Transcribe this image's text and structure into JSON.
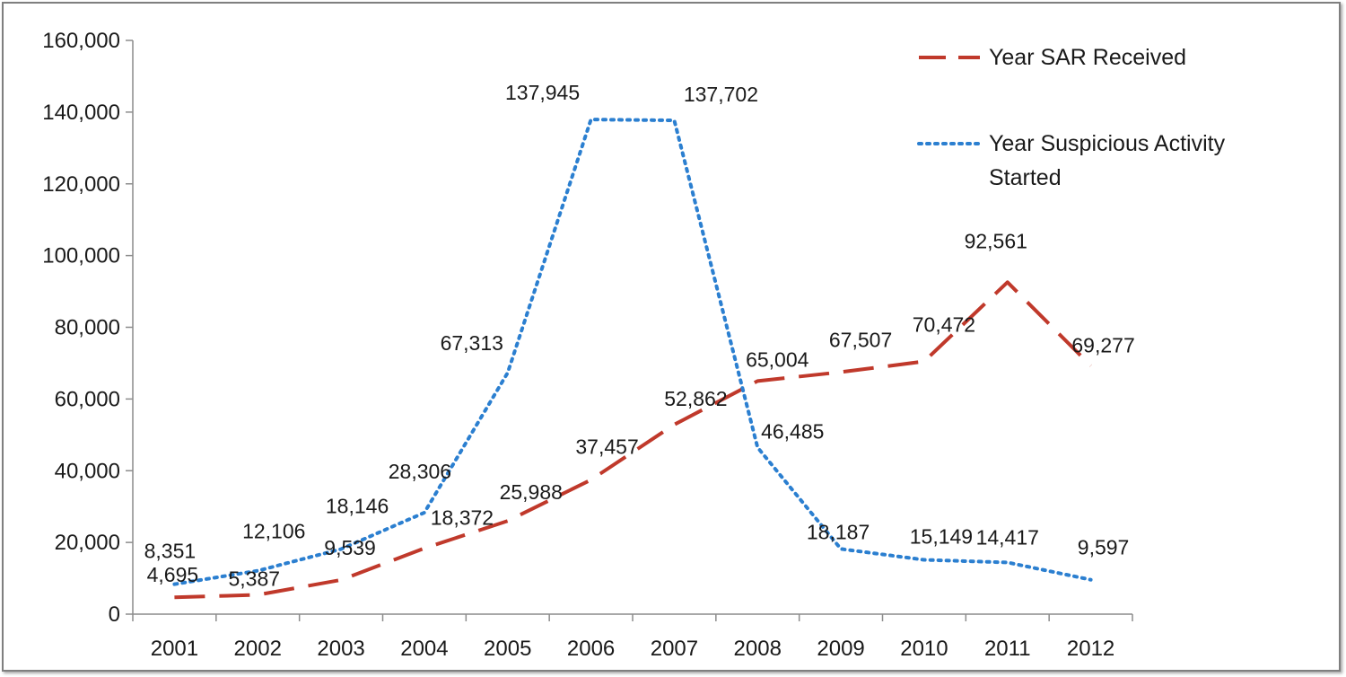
{
  "chart_data": {
    "type": "line",
    "title": "",
    "xlabel": "",
    "ylabel": "",
    "categories": [
      "2001",
      "2002",
      "2003",
      "2004",
      "2005",
      "2006",
      "2007",
      "2008",
      "2009",
      "2010",
      "2011",
      "2012"
    ],
    "ylim": [
      0,
      160000
    ],
    "yticks": [
      0,
      20000,
      40000,
      60000,
      80000,
      100000,
      120000,
      140000,
      160000
    ],
    "ytick_labels": [
      "0",
      "20,000",
      "40,000",
      "60,000",
      "80,000",
      "100,000",
      "120,000",
      "140,000",
      "160,000"
    ],
    "grid": false,
    "legend_position": "top-right",
    "series": [
      {
        "name": "Year SAR Received",
        "style": "dashed",
        "color": "#c0392b",
        "values": [
          4695,
          5387,
          9539,
          18372,
          25988,
          37457,
          52862,
          65004,
          67507,
          70472,
          92561,
          69277
        ],
        "labels": [
          "4,695",
          "5,387",
          "9,539",
          "18,372",
          "25,988",
          "37,457",
          "52,862",
          "65,004",
          "67,507",
          "70,472",
          "92,561",
          "69,277"
        ]
      },
      {
        "name": "Year Suspicious Activity Started",
        "name_lines": [
          "Year Suspicious Activity",
          "Started"
        ],
        "style": "dotted",
        "color": "#2b7fd0",
        "values": [
          8351,
          12106,
          18146,
          28306,
          67313,
          137945,
          137702,
          46485,
          18187,
          15149,
          14417,
          9597
        ],
        "labels": [
          "8,351",
          "12,106",
          "18,146",
          "28,306",
          "67,313",
          "137,945",
          "137,702",
          "46,485",
          "18,187",
          "15,149",
          "14,417",
          "9,597"
        ]
      }
    ]
  }
}
